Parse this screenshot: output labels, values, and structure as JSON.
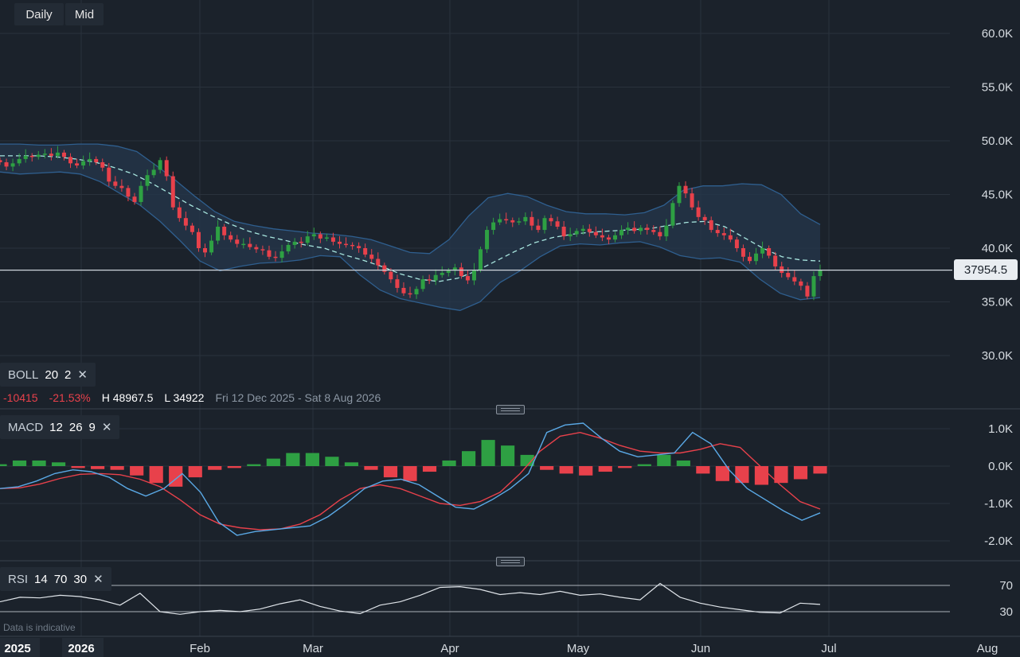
{
  "toolbar": {
    "interval_label": "Daily",
    "price_type_label": "Mid"
  },
  "indicators": {
    "boll": {
      "name": "BOLL",
      "period": "20",
      "stddev": "2"
    },
    "macd": {
      "name": "MACD",
      "fast": "12",
      "slow": "26",
      "signal": "9"
    },
    "rsi": {
      "name": "RSI",
      "period": "14",
      "upper": "70",
      "lower": "30"
    }
  },
  "stats": {
    "change": "-10415",
    "change_pct": "-21.53%",
    "high": "H 48967.5",
    "low": "L 34922",
    "range": "Fri 12 Dec 2025 - Sat 8 Aug 2026"
  },
  "current_price_label": "37954.5",
  "footer_note": "Data is indicative",
  "colors": {
    "up": "#2ea043",
    "down": "#e8414b",
    "macd_line": "#5aa9e6",
    "signal_line": "#e8414b",
    "band_fill": "#24364a",
    "band_line": "#2f5f8f",
    "midline": "#a8e6df"
  },
  "chart_data": [
    {
      "type": "candlestick",
      "x_axis": {
        "labels": [
          "2025",
          "2026",
          "Feb",
          "Mar",
          "Apr",
          "May",
          "Jun",
          "Jul",
          "Aug"
        ]
      },
      "y_axis": {
        "ticks": [
          30000,
          35000,
          40000,
          45000,
          50000,
          55000,
          60000
        ],
        "tick_labels": [
          "30.0K",
          "35.0K",
          "40.0K",
          "45.0K",
          "50.0K",
          "55.0K",
          "60.0K"
        ],
        "range": [
          26000,
          62000
        ]
      },
      "current_price": 37954.5,
      "series": [
        {
          "name": "Price",
          "close": [
            48000,
            47600,
            47900,
            48300,
            48600,
            48500,
            48700,
            48800,
            48600,
            48900,
            48500,
            47900,
            47700,
            48100,
            48300,
            48000,
            47500,
            46200,
            45800,
            45600,
            44800,
            44300,
            45800,
            46800,
            47300,
            48200,
            46700,
            43800,
            42800,
            42100,
            41500,
            40000,
            39600,
            40700,
            42000,
            41200,
            40800,
            40400,
            40400,
            40100,
            39900,
            39800,
            39200,
            39100,
            39700,
            40300,
            40600,
            40500,
            41100,
            41300,
            40900,
            41000,
            40600,
            40400,
            40300,
            40200,
            40000,
            39400,
            39000,
            38400,
            37800,
            37100,
            36300,
            35800,
            35700,
            36200,
            37100,
            37000,
            37500,
            37700,
            37900,
            38200,
            37400,
            37000,
            38000,
            39900,
            41700,
            42400,
            42700,
            42600,
            42400,
            42500,
            42900,
            42100,
            41700,
            42800,
            42500,
            42000,
            41100,
            41300,
            41600,
            41800,
            41500,
            41200,
            41000,
            40800,
            41200,
            41700,
            41900,
            41600,
            41900,
            41700,
            41500,
            41100,
            42100,
            44200,
            45800,
            45100,
            43800,
            42900,
            42600,
            41700,
            41400,
            41200,
            40800,
            40000,
            39200,
            38800,
            39500,
            40000,
            39300,
            38300,
            37700,
            37300,
            36900,
            36500,
            35500,
            37400,
            37954.5
          ]
        },
        {
          "name": "Bollinger middle (20)",
          "values": [
            48600,
            48600,
            48600,
            48500,
            48300,
            48000,
            47500,
            46900,
            46000,
            45000,
            44000,
            43100,
            42300,
            41600,
            41100,
            40700,
            40300,
            40000,
            39400,
            38900,
            38300,
            37600,
            37100,
            36900,
            37200,
            37900,
            38800,
            39700,
            40500,
            41000,
            41300,
            41500,
            41600,
            41700,
            41800,
            42100,
            42400,
            42500,
            42000,
            41000,
            40000,
            39200,
            38900,
            38800
          ]
        },
        {
          "name": "Bollinger upper",
          "values": [
            49700,
            49700,
            49600,
            49600,
            49700,
            49700,
            49500,
            49000,
            47700,
            46300,
            44800,
            43400,
            42500,
            42100,
            41800,
            41600,
            41400,
            41300,
            41100,
            40800,
            40200,
            39600,
            39500,
            40800,
            43000,
            44700,
            45100,
            44800,
            44000,
            43400,
            43200,
            43200,
            43100,
            43300,
            44000,
            45400,
            45800,
            45800,
            46000,
            45900,
            45000,
            43200,
            42200
          ]
        },
        {
          "name": "Bollinger lower",
          "values": [
            47100,
            46900,
            47000,
            47100,
            46900,
            46200,
            45100,
            44000,
            42500,
            40700,
            38800,
            37900,
            38300,
            38600,
            38700,
            38900,
            39300,
            39200,
            37500,
            36100,
            35300,
            34900,
            34500,
            34200,
            35000,
            36800,
            37900,
            39200,
            40200,
            40400,
            40300,
            40500,
            40600,
            40100,
            39300,
            39000,
            39100,
            38700,
            37100,
            35800,
            35200,
            35400
          ]
        }
      ]
    },
    {
      "type": "macd",
      "y_axis": {
        "ticks": [
          -2000,
          -1000,
          0,
          1000
        ],
        "tick_labels": [
          "-2.0K",
          "-1.0K",
          "0.0K",
          "1.0K"
        ],
        "range": [
          -2500,
          1500
        ]
      },
      "series": [
        {
          "name": "MACD",
          "values": [
            -600,
            -550,
            -400,
            -200,
            -100,
            -150,
            -300,
            -600,
            -800,
            -600,
            -200,
            -700,
            -1500,
            -1850,
            -1750,
            -1700,
            -1650,
            -1600,
            -1350,
            -1000,
            -600,
            -400,
            -350,
            -500,
            -800,
            -1100,
            -1150,
            -900,
            -600,
            -200,
            900,
            1100,
            1150,
            750,
            400,
            250,
            300,
            350,
            900,
            600,
            -100,
            -600,
            -900,
            -1200,
            -1450,
            -1250
          ]
        },
        {
          "name": "Signal",
          "values": [
            -600,
            -580,
            -480,
            -330,
            -220,
            -200,
            -230,
            -350,
            -550,
            -900,
            -1300,
            -1550,
            -1650,
            -1700,
            -1680,
            -1550,
            -1300,
            -900,
            -600,
            -500,
            -600,
            -800,
            -1000,
            -1050,
            -950,
            -700,
            -200,
            400,
            800,
            900,
            750,
            550,
            400,
            350,
            350,
            450,
            600,
            500,
            0,
            -500,
            -950,
            -1150
          ]
        },
        {
          "name": "Histogram",
          "values": [
            50,
            150,
            150,
            100,
            -50,
            -80,
            -100,
            -250,
            -450,
            -550,
            -300,
            -100,
            -50,
            50,
            200,
            350,
            350,
            250,
            100,
            -100,
            -300,
            -400,
            -150,
            150,
            400,
            700,
            550,
            300,
            -100,
            -200,
            -250,
            -150,
            -50,
            50,
            300,
            150,
            -200,
            -400,
            -450,
            -500,
            -450,
            -350,
            -200
          ]
        }
      ]
    },
    {
      "type": "line",
      "name": "RSI",
      "y_axis": {
        "ticks": [
          30,
          70
        ],
        "tick_labels": [
          "30",
          "70"
        ],
        "range": [
          0,
          100
        ]
      },
      "series": [
        {
          "name": "RSI",
          "values": [
            45,
            52,
            51,
            55,
            53,
            48,
            40,
            58,
            30,
            26,
            30,
            32,
            30,
            34,
            42,
            48,
            38,
            31,
            27,
            40,
            45,
            55,
            67,
            68,
            64,
            56,
            59,
            56,
            61,
            55,
            57,
            52,
            48,
            73,
            52,
            43,
            37,
            33,
            29,
            28,
            43,
            41
          ]
        }
      ]
    }
  ]
}
